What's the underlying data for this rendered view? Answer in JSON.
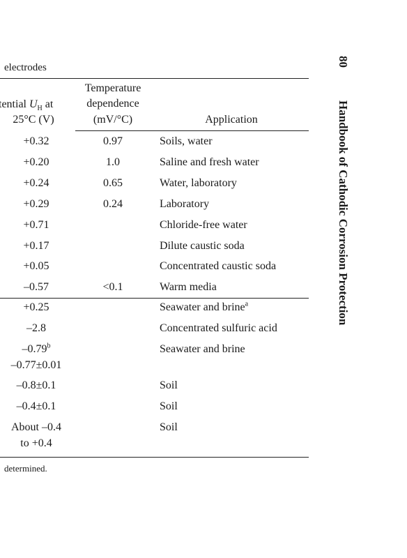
{
  "caption": "electrodes",
  "header": {
    "potential": {
      "line1_pre": "tential ",
      "symbol": "U",
      "subscript": "H",
      "line1_post": " at",
      "line2": "25°C (V)"
    },
    "temperature": [
      "Temperature",
      "dependence",
      "(mV/°C)"
    ],
    "application": "Application"
  },
  "rows": [
    {
      "potential": "+0.32",
      "temperature": "0.97",
      "application": "Soils, water"
    },
    {
      "potential": "+0.20",
      "temperature": "1.0",
      "application": "Saline and fresh water"
    },
    {
      "potential": "+0.24",
      "temperature": "0.65",
      "application": "Water, laboratory"
    },
    {
      "potential": "+0.29",
      "temperature": "0.24",
      "application": "Laboratory"
    },
    {
      "potential": "+0.71",
      "application": "Chloride-free water"
    },
    {
      "potential": "+0.17",
      "application": "Dilute caustic soda"
    },
    {
      "potential": "+0.05",
      "application": "Concentrated caustic soda"
    },
    {
      "potential": "–0.57",
      "temperature": "<0.1",
      "application": "Warm media"
    },
    {
      "potential": "+0.25",
      "application": "Seawater and brine",
      "application_sup": "a"
    },
    {
      "potential": "–2.8",
      "application": "Concentrated sulfuric acid"
    },
    {
      "potential": "–0.79",
      "potential_sup": "b",
      "potential_line2": "–0.77±0.01",
      "application": "Seawater and brine"
    },
    {
      "potential": "–0.8±0.1",
      "application": "Soil"
    },
    {
      "potential": "–0.4±0.1",
      "application": "Soil"
    },
    {
      "potential": "About –0.4",
      "potential_line2": "to +0.4",
      "application": "Soil"
    }
  ],
  "footnote": "determined.",
  "page_number": "80",
  "running_head": "Handbook of Cathodic Corrosion Protection"
}
